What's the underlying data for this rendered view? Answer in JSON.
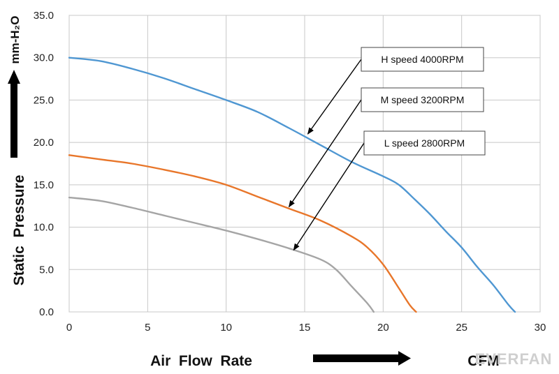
{
  "chart_data": {
    "type": "line",
    "xlim": [
      0,
      30
    ],
    "ylim": [
      0,
      35
    ],
    "x_ticks": [
      "0",
      "5",
      "10",
      "15",
      "20",
      "25",
      "30"
    ],
    "y_ticks": [
      "0.0",
      "5.0",
      "10.0",
      "15.0",
      "20.0",
      "25.0",
      "30.0",
      "35.0"
    ],
    "xlabel": "Air  Flow  Rate",
    "xunit": "CFM",
    "ylabel": "Static  Pressure",
    "yunit": "mm-H₂O",
    "grid": true,
    "series": [
      {
        "name": "H  speed  4000RPM",
        "color": "#4f97d2",
        "points": [
          [
            0,
            30.0
          ],
          [
            2,
            29.6
          ],
          [
            4,
            28.7
          ],
          [
            6,
            27.6
          ],
          [
            8,
            26.3
          ],
          [
            10,
            25.0
          ],
          [
            12,
            23.6
          ],
          [
            14,
            21.7
          ],
          [
            16,
            19.7
          ],
          [
            18,
            17.7
          ],
          [
            20,
            16.0
          ],
          [
            21,
            15.0
          ],
          [
            22,
            13.3
          ],
          [
            23,
            11.5
          ],
          [
            24,
            9.5
          ],
          [
            25,
            7.6
          ],
          [
            26,
            5.3
          ],
          [
            27,
            3.2
          ],
          [
            28,
            0.8
          ],
          [
            28.4,
            0.0
          ]
        ]
      },
      {
        "name": "M  speed  3200RPM",
        "color": "#e8762a",
        "points": [
          [
            0,
            18.5
          ],
          [
            2,
            18.0
          ],
          [
            4,
            17.5
          ],
          [
            6,
            16.8
          ],
          [
            8,
            16.0
          ],
          [
            10,
            15.0
          ],
          [
            12,
            13.6
          ],
          [
            14,
            12.2
          ],
          [
            16,
            10.8
          ],
          [
            18,
            8.9
          ],
          [
            19,
            7.6
          ],
          [
            20,
            5.6
          ],
          [
            21,
            2.8
          ],
          [
            21.7,
            0.8
          ],
          [
            22.1,
            0.0
          ]
        ]
      },
      {
        "name": "L  speed  2800RPM",
        "color": "#a5a5a5",
        "points": [
          [
            0,
            13.5
          ],
          [
            2,
            13.1
          ],
          [
            4,
            12.3
          ],
          [
            6,
            11.4
          ],
          [
            8,
            10.5
          ],
          [
            10,
            9.6
          ],
          [
            12,
            8.6
          ],
          [
            14,
            7.5
          ],
          [
            16,
            6.2
          ],
          [
            17,
            5.0
          ],
          [
            18,
            3.0
          ],
          [
            19,
            1.0
          ],
          [
            19.4,
            0.0
          ]
        ]
      }
    ],
    "annotations": [
      {
        "text": "H  speed  4000RPM",
        "series": 0,
        "arrow_to": [
          15.2,
          21.0
        ]
      },
      {
        "text": "M  speed  3200RPM",
        "series": 1,
        "arrow_to": [
          14.0,
          12.4
        ]
      },
      {
        "text": "L  speed  2800RPM",
        "series": 2,
        "arrow_to": [
          14.3,
          7.3
        ]
      }
    ]
  },
  "watermark": "EVERFAN"
}
